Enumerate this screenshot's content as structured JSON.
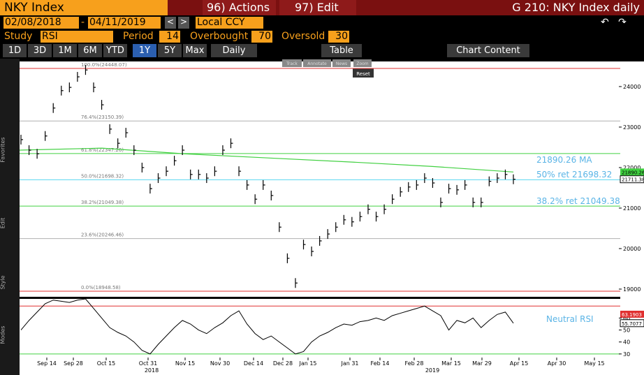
{
  "header": {
    "security": "NKY Index",
    "actions": "96) Actions",
    "edit": "97) Edit",
    "window_title": "G 210: NKY Index daily",
    "start_date": "02/08/2018",
    "end_date": "04/11/2019",
    "currency": "Local CCY",
    "study_label": "Study",
    "study": "RSI",
    "period_label": "Period",
    "period": 14,
    "overbought_label": "Overbought",
    "overbought": 70,
    "oversold_label": "Oversold",
    "oversold": 30
  },
  "toolbar": {
    "periods": [
      "1D",
      "3D",
      "1M",
      "6M",
      "YTD",
      "1Y",
      "5Y",
      "Max"
    ],
    "active": "1Y",
    "frequency": "Daily",
    "table": "Table",
    "chart_content": "Chart Content",
    "mini": [
      "Track",
      "Annotate",
      "News",
      "Zoom"
    ],
    "reset": "Reset",
    "side_labels": [
      "Favorites",
      "Edit",
      "Style",
      "Modes"
    ]
  },
  "chart_data": {
    "type": "ohlc",
    "values": [
      22690,
      22430,
      22340,
      22780,
      23470,
      23900,
      23980,
      24240,
      24410,
      23980,
      23550,
      22950,
      22600,
      22860,
      22430,
      22000,
      21480,
      21740,
      21910,
      22170,
      22430,
      21830,
      21830,
      21740,
      21910,
      22430,
      22600,
      21910,
      21570,
      21220,
      21570,
      21310,
      20530,
      19760,
      19150,
      20100,
      19930,
      20190,
      20360,
      20530,
      20710,
      20660,
      20790,
      20970,
      20790,
      20970,
      21220,
      21400,
      21520,
      21570,
      21740,
      21620,
      21140,
      21480,
      21450,
      21570,
      21140,
      21140,
      21660,
      21740,
      21830,
      21711.38
    ],
    "ma_values": [
      22430,
      22480,
      22340,
      22240,
      22140,
      22030,
      21890.26
    ],
    "ylim": [
      18810,
      24620
    ],
    "yticks": [
      19000,
      20000,
      21000,
      22000,
      23000,
      24000
    ],
    "fib_levels": [
      {
        "label": "100.0%(24448.07)",
        "value": 24448.07,
        "color": "#e03030"
      },
      {
        "label": "76.4%(23150.39)",
        "value": 23150.39,
        "color": "#b0b0b0"
      },
      {
        "label": "61.8%(22347.26)",
        "value": 22347.26,
        "color": "#40d040"
      },
      {
        "label": "50.0%(21698.32)",
        "value": 21698.32,
        "color": "#60d8f0"
      },
      {
        "label": "38.2%(21049.38)",
        "value": 21049.38,
        "color": "#40d040"
      },
      {
        "label": "23.6%(20246.46)",
        "value": 20246.46,
        "color": "#b0b0b0"
      },
      {
        "label": "0.0%(18948.58)",
        "value": 18948.58,
        "color": "#e03030"
      }
    ],
    "last_price": {
      "value": 21711.38,
      "label": "21711.38"
    },
    "last_ma": {
      "value": 21890.26,
      "label": "21890.26"
    },
    "annotations": [
      "21890.26 MA",
      "50% ret 21698.32",
      "38.2% ret 21049.38"
    ],
    "xtick_labels": [
      "Sep 14",
      "Sep 28",
      "Oct 15",
      "Oct 31",
      "Nov 15",
      "Nov 30",
      "Dec 14",
      "Dec 28",
      "Jan 15",
      "Jan 31",
      "Feb 14",
      "Feb 28",
      "Mar 15",
      "Mar 29",
      "Apr 15",
      "Apr 30",
      "May 15"
    ],
    "years": [
      "2018",
      "2019"
    ],
    "rsi": {
      "values": [
        50,
        58,
        65,
        72,
        75,
        74,
        73,
        75,
        76,
        68,
        60,
        52,
        48,
        45,
        40,
        33,
        30,
        38,
        45,
        52,
        58,
        55,
        50,
        47,
        52,
        56,
        62,
        66,
        55,
        47,
        42,
        45,
        40,
        35,
        30,
        32,
        40,
        45,
        48,
        52,
        55,
        54,
        57,
        58,
        60,
        58,
        62,
        64,
        66,
        68,
        70,
        66,
        62,
        50,
        58,
        56,
        60,
        52,
        58,
        63,
        65,
        55.7077
      ],
      "ylim": [
        27,
        76
      ],
      "yticks": [
        30,
        40,
        50,
        60
      ],
      "top_label": {
        "value": 63.1903,
        "label": "63.1903"
      },
      "last_label": {
        "value": 55.7077,
        "label": "55.7077"
      },
      "annotation": "Neutral RSI"
    }
  }
}
